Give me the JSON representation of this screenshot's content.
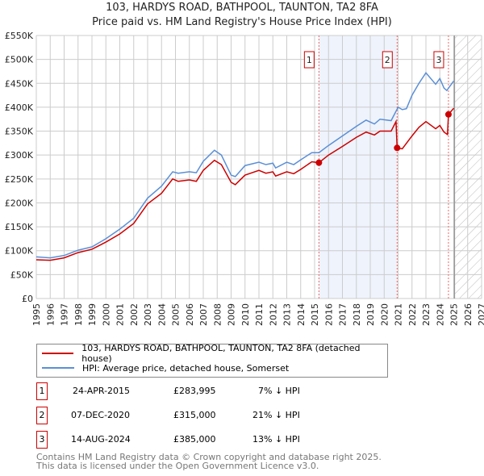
{
  "chart_data": {
    "type": "line",
    "title": "103, HARDYS ROAD, BATHPOOL, TAUNTON, TA2 8FA",
    "subtitle": "Price paid vs. HM Land Registry's House Price Index (HPI)",
    "xlim": [
      1995,
      2027
    ],
    "ylim": [
      0,
      550000
    ],
    "x_ticks": [
      "1995",
      "1996",
      "1997",
      "1998",
      "1999",
      "2000",
      "2001",
      "2002",
      "2003",
      "2004",
      "2005",
      "2006",
      "2007",
      "2008",
      "2009",
      "2010",
      "2011",
      "2012",
      "2013",
      "2014",
      "2015",
      "2016",
      "2017",
      "2018",
      "2019",
      "2020",
      "2021",
      "2022",
      "2023",
      "2024",
      "2025",
      "2026",
      "2027"
    ],
    "y_ticks": [
      {
        "v": 0,
        "l": "£0"
      },
      {
        "v": 50000,
        "l": "£50K"
      },
      {
        "v": 100000,
        "l": "£100K"
      },
      {
        "v": 150000,
        "l": "£150K"
      },
      {
        "v": 200000,
        "l": "£200K"
      },
      {
        "v": 250000,
        "l": "£250K"
      },
      {
        "v": 300000,
        "l": "£300K"
      },
      {
        "v": 350000,
        "l": "£350K"
      },
      {
        "v": 400000,
        "l": "£400K"
      },
      {
        "v": 450000,
        "l": "£450K"
      },
      {
        "v": 500000,
        "l": "£500K"
      },
      {
        "v": 550000,
        "l": "£550K"
      }
    ],
    "grid": true,
    "forecast_from": 2025.05,
    "shaded_range": [
      2015.31,
      2020.93
    ],
    "series": [
      {
        "name": "103, HARDYS ROAD, BATHPOOL, TAUNTON, TA2 8FA (detached house)",
        "color": "#cc0000",
        "x": [
          1995,
          1996,
          1997,
          1998,
          1999,
          2000,
          2001,
          2002,
          2003,
          2004,
          2004.8,
          2005.2,
          2006,
          2006.5,
          2007,
          2007.8,
          2008.3,
          2009,
          2009.3,
          2010,
          2011,
          2011.5,
          2012,
          2012.2,
          2013,
          2013.5,
          2014,
          2014.8,
          2015.31,
          2016,
          2017,
          2018,
          2018.7,
          2019.3,
          2019.7,
          2020.5,
          2020.85,
          2020.93,
          2021.3,
          2022,
          2022.5,
          2023,
          2023.7,
          2024,
          2024.3,
          2024.55,
          2024.62,
          2025
        ],
        "y": [
          81000,
          80000,
          85000,
          96000,
          103000,
          118000,
          135000,
          157000,
          198000,
          220000,
          250000,
          245000,
          248000,
          245000,
          268000,
          289000,
          280000,
          243000,
          238000,
          258000,
          268000,
          262000,
          265000,
          256000,
          265000,
          261000,
          270000,
          286000,
          283995,
          300000,
          318000,
          337000,
          348000,
          342000,
          350000,
          350000,
          370000,
          315000,
          313000,
          340000,
          358000,
          370000,
          355000,
          362000,
          348000,
          343000,
          385000,
          398000
        ]
      },
      {
        "name": "HPI: Average price, detached house, Somerset",
        "color": "#5b8fd6",
        "x": [
          1995,
          1996,
          1997,
          1998,
          1999,
          2000,
          2001,
          2002,
          2003,
          2004,
          2004.8,
          2005.2,
          2006,
          2006.5,
          2007,
          2007.8,
          2008.3,
          2009,
          2009.3,
          2010,
          2011,
          2011.5,
          2012,
          2012.2,
          2013,
          2013.5,
          2014,
          2014.8,
          2015.31,
          2016,
          2017,
          2018,
          2018.7,
          2019.3,
          2019.7,
          2020.5,
          2021,
          2021.3,
          2021.6,
          2022,
          2022.5,
          2023,
          2023.7,
          2024,
          2024.3,
          2024.5,
          2025
        ],
        "y": [
          87000,
          85000,
          90000,
          101000,
          108000,
          125000,
          145000,
          168000,
          210000,
          235000,
          265000,
          262000,
          265000,
          263000,
          287000,
          310000,
          300000,
          258000,
          255000,
          278000,
          285000,
          280000,
          283000,
          273000,
          285000,
          280000,
          290000,
          305000,
          305000,
          320000,
          340000,
          360000,
          373000,
          365000,
          375000,
          372000,
          400000,
          395000,
          397000,
          425000,
          450000,
          472000,
          448000,
          460000,
          440000,
          435000,
          455000
        ]
      }
    ],
    "sales": [
      {
        "label": "1",
        "x": 2015.31,
        "y": 283995,
        "date": "24-APR-2015",
        "price": "£283,995",
        "delta": "7% ↓ HPI"
      },
      {
        "label": "2",
        "x": 2020.93,
        "y": 315000,
        "date": "07-DEC-2020",
        "price": "£315,000",
        "delta": "21% ↓ HPI"
      },
      {
        "label": "3",
        "x": 2024.62,
        "y": 385000,
        "date": "14-AUG-2024",
        "price": "£385,000",
        "delta": "13% ↓ HPI"
      }
    ]
  },
  "legend": {
    "property": "103, HARDYS ROAD, BATHPOOL, TAUNTON, TA2 8FA (detached house)",
    "hpi": "HPI: Average price, detached house, Somerset"
  },
  "footer": {
    "line1": "Contains HM Land Registry data © Crown copyright and database right 2025.",
    "line2": "This data is licensed under the Open Government Licence v3.0."
  }
}
